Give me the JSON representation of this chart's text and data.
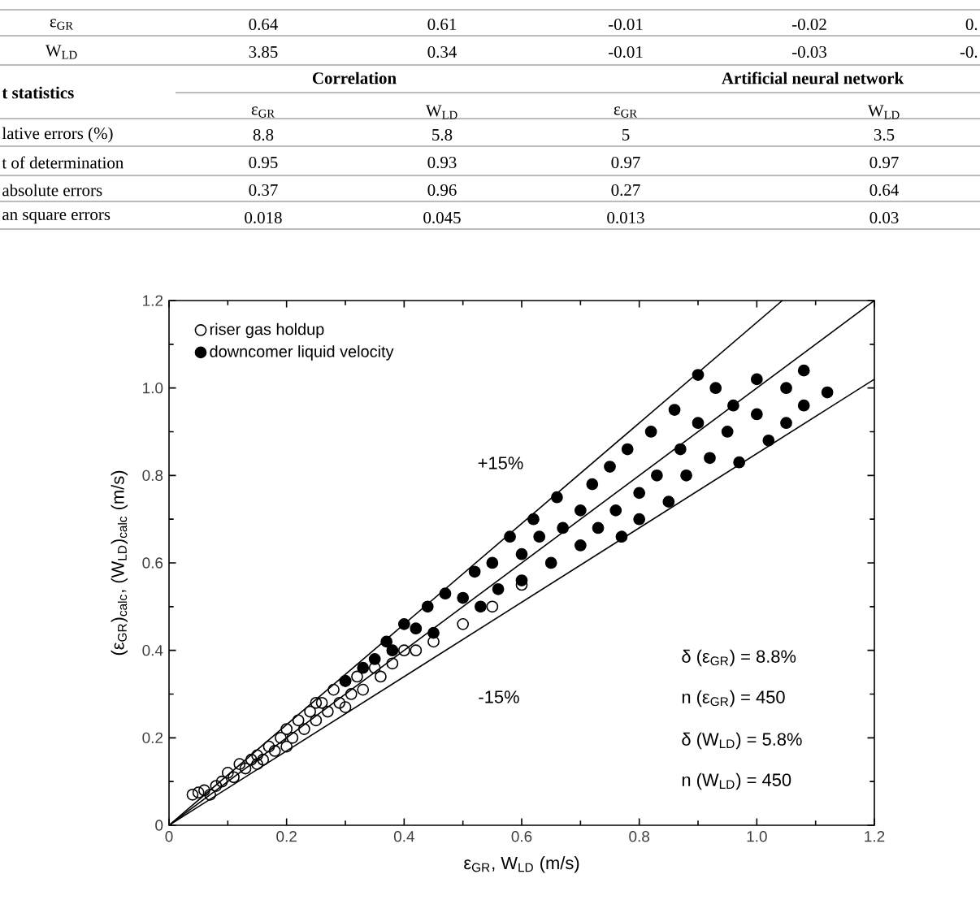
{
  "chart_data": {
    "type": "scatter",
    "xlabel": "ε$_{GR}$, W$_{LD}$ (m/s)",
    "ylabel": "(ε$_{GR}$)$_{calc}$, (W$_{LD}$)$_{calc}$ (m/s)",
    "xlim": [
      0,
      1.2
    ],
    "ylim": [
      0,
      1.2
    ],
    "xticks": [
      0,
      0.2,
      0.4,
      0.6,
      0.8,
      {
        "value": 1,
        "label": "1.0"
      },
      1.2
    ],
    "yticks": [
      0,
      0.2,
      0.4,
      0.6,
      0.8,
      {
        "value": 1,
        "label": "1.0"
      },
      1.2
    ],
    "grid": false,
    "legend": "top left",
    "series": [
      {
        "name": "riser gas holdup",
        "color": "#000000",
        "marker": "circle",
        "x": [
          0.04,
          0.05,
          0.06,
          0.07,
          0.08,
          0.09,
          0.1,
          0.11,
          0.12,
          0.13,
          0.14,
          0.15,
          0.16,
          0.17,
          0.18,
          0.19,
          0.2,
          0.21,
          0.22,
          0.23,
          0.24,
          0.25,
          0.26,
          0.27,
          0.28,
          0.29,
          0.3,
          0.31,
          0.32,
          0.33,
          0.35,
          0.36,
          0.38,
          0.4,
          0.42,
          0.45,
          0.5,
          0.55,
          0.6,
          0.25,
          0.2,
          0.15,
          0.3
        ],
        "values": [
          0.07,
          0.075,
          0.08,
          0.07,
          0.09,
          0.1,
          0.12,
          0.11,
          0.14,
          0.13,
          0.15,
          0.16,
          0.15,
          0.18,
          0.17,
          0.2,
          0.22,
          0.2,
          0.24,
          0.22,
          0.26,
          0.24,
          0.28,
          0.26,
          0.31,
          0.28,
          0.33,
          0.3,
          0.34,
          0.31,
          0.36,
          0.34,
          0.37,
          0.4,
          0.4,
          0.42,
          0.46,
          0.5,
          0.55,
          0.28,
          0.18,
          0.14,
          0.27
        ]
      },
      {
        "name": "downcomer liquid velocity",
        "color": "#000000",
        "marker": "circle",
        "x": [
          0.3,
          0.33,
          0.35,
          0.37,
          0.38,
          0.4,
          0.42,
          0.44,
          0.45,
          0.47,
          0.5,
          0.52,
          0.53,
          0.55,
          0.56,
          0.58,
          0.6,
          0.6,
          0.62,
          0.63,
          0.65,
          0.66,
          0.67,
          0.7,
          0.7,
          0.72,
          0.73,
          0.75,
          0.76,
          0.77,
          0.78,
          0.8,
          0.8,
          0.82,
          0.83,
          0.85,
          0.86,
          0.87,
          0.88,
          0.9,
          0.9,
          0.92,
          0.93,
          0.95,
          0.96,
          0.97,
          1.0,
          1.0,
          1.02,
          1.05,
          1.05,
          1.08,
          1.08,
          1.12
        ],
        "values": [
          0.33,
          0.36,
          0.38,
          0.42,
          0.4,
          0.46,
          0.45,
          0.5,
          0.44,
          0.53,
          0.52,
          0.58,
          0.5,
          0.6,
          0.54,
          0.66,
          0.62,
          0.56,
          0.7,
          0.66,
          0.6,
          0.75,
          0.68,
          0.72,
          0.64,
          0.78,
          0.68,
          0.82,
          0.72,
          0.66,
          0.86,
          0.76,
          0.7,
          0.9,
          0.8,
          0.74,
          0.95,
          0.86,
          0.8,
          1.03,
          0.92,
          0.84,
          1.0,
          0.9,
          0.96,
          0.83,
          1.02,
          0.94,
          0.88,
          1.0,
          0.92,
          1.04,
          0.96,
          0.99
        ]
      },
      {
        "type": "line",
        "color": "#000000",
        "marker": "none",
        "line_style": "solid",
        "x": [
          0,
          1.2
        ],
        "values": [
          0,
          1.2
        ]
      },
      {
        "type": "line",
        "color": "#000000",
        "marker": "none",
        "line_style": "solid",
        "x": [
          0,
          1.0435
        ],
        "values": [
          0,
          1.2
        ]
      },
      {
        "type": "line",
        "color": "#000000",
        "marker": "none",
        "line_style": "solid",
        "x": [
          0,
          1.2
        ],
        "values": [
          0,
          1.02
        ]
      }
    ],
    "annotations": [
      "ε$_{GR}$",
      "0.64",
      "0.61",
      "-0.01",
      "-0.02",
      "0.",
      "W$_{LD}$",
      "3.85",
      "0.34",
      "-0.01",
      "-0.03",
      "-0.",
      "t statistics",
      "Correlation",
      "Artificial neural network",
      "ε$_{GR}$",
      "W$_{LD}$",
      "ε$_{GR}$",
      "W$_{LD}$",
      "lative errors (%)",
      "8.8",
      "5.8",
      "5",
      "3.5",
      "t of determination",
      "0.95",
      "0.93",
      "0.97",
      "0.97",
      "absolute errors",
      "0.37",
      "0.96",
      "0.27",
      "0.64",
      "an square errors",
      "0.018",
      "0.045",
      "0.013",
      "0.03",
      "+15%",
      "-15%",
      "δ (ε$_{GR}$) = 8.8%",
      "n (ε$_{GR}$) = 450",
      "δ (W$_{LD}$) = 5.8%",
      "n (W$_{LD}$) = 450"
    ]
  }
}
